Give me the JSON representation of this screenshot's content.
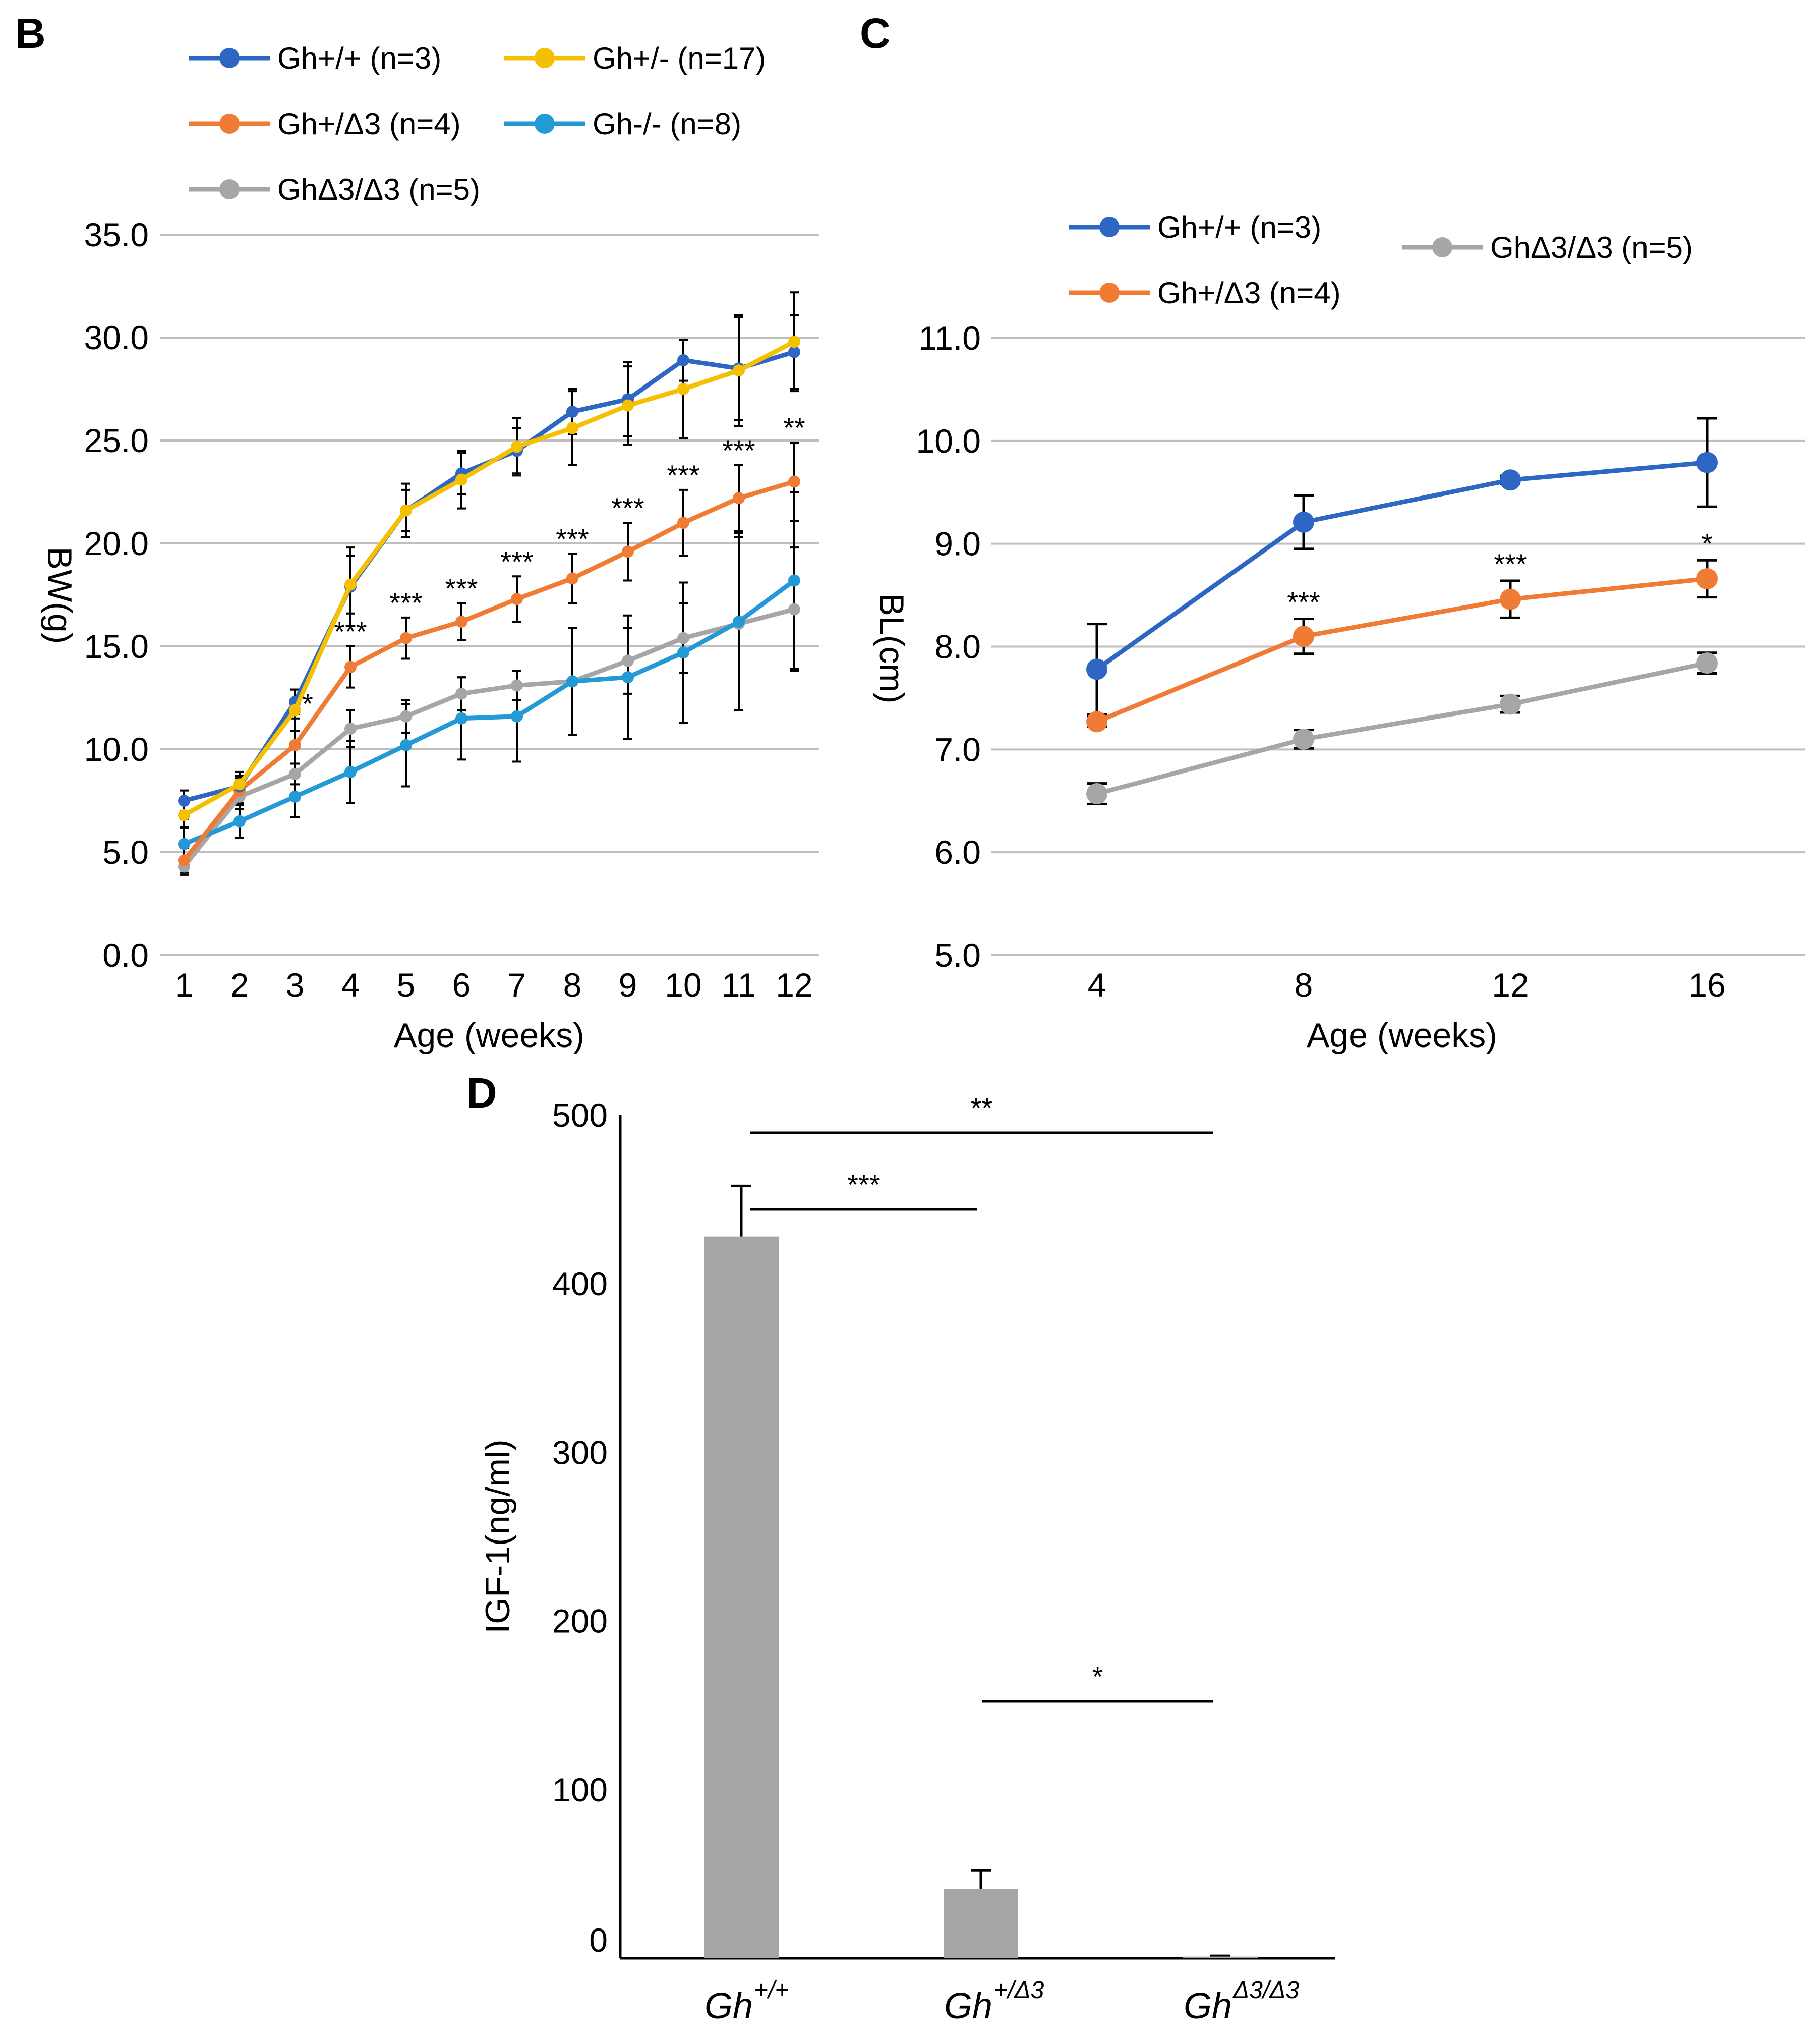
{
  "chart_data": [
    {
      "panel": "B",
      "type": "line",
      "xlabel": "Age (weeks)",
      "ylabel": "BW(g)",
      "ylim": [
        0,
        35
      ],
      "grid": true,
      "legend_position": "top",
      "x": [
        1,
        2,
        3,
        4,
        5,
        6,
        7,
        8,
        9,
        10,
        11,
        12
      ],
      "x_tick_labels": [
        "1",
        "2",
        "3",
        "4",
        "5",
        "6",
        "7",
        "8",
        "9",
        "10",
        "11",
        "12"
      ],
      "y_tick_labels": [
        "0.0",
        "5.0",
        "10.0",
        "15.0",
        "20.0",
        "25.0",
        "30.0",
        "35.0"
      ],
      "y_ticks": [
        0,
        5,
        10,
        15,
        20,
        25,
        30,
        35
      ],
      "series": [
        {
          "name": "Gh+/+ (n=3)",
          "color": "#2e66c4",
          "values": [
            7.5,
            8.2,
            12.3,
            17.9,
            21.6,
            23.4,
            24.5,
            26.4,
            27.0,
            28.9,
            28.5,
            29.3
          ],
          "errors": [
            0.5,
            0.5,
            0.6,
            1.9,
            1.3,
            1.0,
            1.1,
            1.1,
            1.8,
            1.0,
            2.5,
            1.8
          ]
        },
        {
          "name": "Gh+/- (n=17)",
          "color": "#f5c000",
          "values": [
            6.8,
            8.3,
            11.9,
            18.0,
            21.6,
            23.1,
            24.7,
            25.6,
            26.7,
            27.5,
            28.4,
            29.8
          ],
          "errors": [
            0.6,
            0.6,
            1.0,
            1.4,
            1.0,
            1.4,
            1.4,
            1.8,
            1.9,
            2.4,
            2.7,
            2.4
          ]
        },
        {
          "name": "Gh+/Δ3 (n=4)",
          "color": "#f07b35",
          "values": [
            4.6,
            8.0,
            10.2,
            14.0,
            15.4,
            16.2,
            17.3,
            18.3,
            19.6,
            21.0,
            22.2,
            23.0
          ],
          "errors": [
            0.6,
            0.6,
            1.3,
            1.0,
            1.0,
            0.9,
            1.1,
            1.2,
            1.4,
            1.6,
            1.6,
            1.9
          ]
        },
        {
          "name": "Gh-/- (n=8)",
          "color": "#239ad6",
          "values": [
            5.4,
            6.5,
            7.7,
            8.9,
            10.2,
            11.5,
            11.6,
            13.3,
            13.5,
            14.7,
            16.2,
            18.2
          ],
          "errors": [
            1.2,
            0.8,
            1.0,
            1.5,
            2.0,
            2.0,
            2.2,
            2.6,
            3.0,
            3.4,
            4.3,
            4.3
          ]
        },
        {
          "name": "GhΔ3/Δ3 (n=5)",
          "color": "#a6a6a6",
          "values": [
            4.3,
            7.7,
            8.8,
            11.0,
            11.6,
            12.7,
            13.1,
            13.3,
            14.3,
            15.4,
            16.1,
            16.8
          ],
          "errors": [
            0.4,
            0.6,
            0.5,
            0.9,
            0.8,
            0.8,
            0.7,
            2.6,
            1.6,
            1.7,
            4.2,
            3.0
          ]
        }
      ],
      "annotations": [
        {
          "x": 3,
          "text": "*"
        },
        {
          "x": 4,
          "text": "***"
        },
        {
          "x": 5,
          "text": "***"
        },
        {
          "x": 6,
          "text": "***"
        },
        {
          "x": 7,
          "text": "***"
        },
        {
          "x": 8,
          "text": "***"
        },
        {
          "x": 9,
          "text": "***"
        },
        {
          "x": 10,
          "text": "***"
        },
        {
          "x": 11,
          "text": "***"
        },
        {
          "x": 12,
          "text": "**"
        }
      ]
    },
    {
      "panel": "C",
      "type": "line",
      "xlabel": "Age (weeks)",
      "ylabel": "BL(cm)",
      "ylim": [
        5,
        11
      ],
      "grid": true,
      "legend_position": "top",
      "x": [
        4,
        8,
        12,
        16
      ],
      "x_tick_labels": [
        "4",
        "8",
        "12",
        "16"
      ],
      "y_tick_labels": [
        "5.0",
        "6.0",
        "7.0",
        "8.0",
        "9.0",
        "10.0",
        "11.0"
      ],
      "y_ticks": [
        5,
        6,
        7,
        8,
        9,
        10,
        11
      ],
      "series": [
        {
          "name": "Gh+/+ (n=3)",
          "color": "#2e66c4",
          "values": [
            7.78,
            9.21,
            9.62,
            9.79
          ],
          "errors": [
            0.44,
            0.26,
            0.04,
            0.43
          ]
        },
        {
          "name": "Gh+/Δ3 (n=4)",
          "color": "#f07b35",
          "values": [
            7.27,
            8.1,
            8.46,
            8.66
          ],
          "errors": [
            0.05,
            0.17,
            0.18,
            0.18
          ]
        },
        {
          "name": "GhΔ3/Δ3 (n=5)",
          "color": "#a6a6a6",
          "values": [
            6.57,
            7.1,
            7.44,
            7.84
          ],
          "errors": [
            0.1,
            0.09,
            0.08,
            0.1
          ]
        }
      ],
      "annotations": [
        {
          "x": 8,
          "text": "***"
        },
        {
          "x": 12,
          "text": "***"
        },
        {
          "x": 16,
          "text": "*"
        }
      ]
    },
    {
      "panel": "D",
      "type": "bar",
      "ylabel": "IGF-1(ng/ml)",
      "ylim": [
        0,
        500
      ],
      "y_ticks": [
        0,
        100,
        200,
        300,
        400,
        500
      ],
      "y_tick_labels": [
        "0",
        "100",
        "200",
        "300",
        "400",
        "500"
      ],
      "color": "#a6a6a6",
      "categories": [
        {
          "base": "Gh",
          "sup": "+/+"
        },
        {
          "base": "Gh",
          "sup": "+/Δ3"
        },
        {
          "base": "Gh",
          "sup": "Δ3/Δ3"
        }
      ],
      "values": [
        428,
        41,
        1
      ],
      "errors": [
        30,
        11,
        0
      ],
      "significance": [
        {
          "from": 0,
          "to": 2,
          "text": "**",
          "level": 2
        },
        {
          "from": 0,
          "to": 1,
          "text": "***",
          "level": 1
        },
        {
          "from": 1,
          "to": 2,
          "text": "*",
          "level": 0
        }
      ]
    }
  ]
}
